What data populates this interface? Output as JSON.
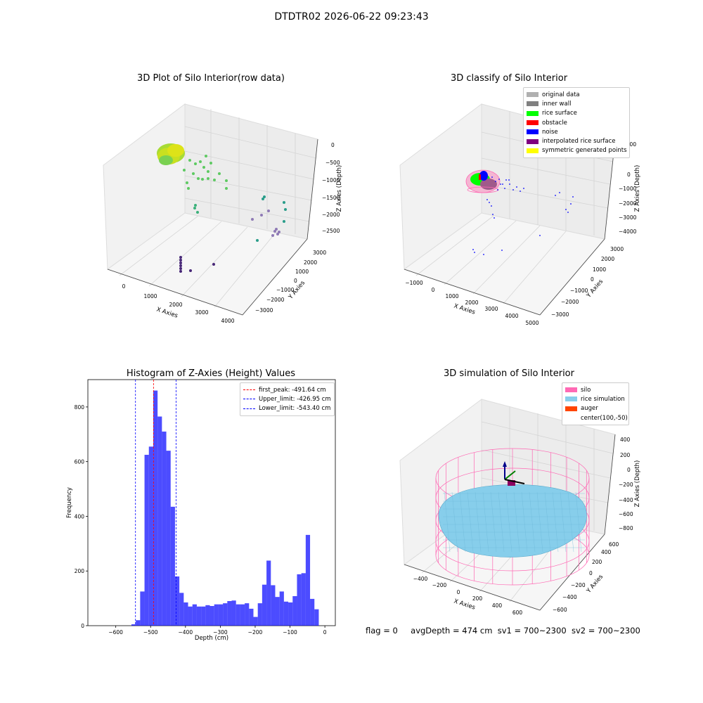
{
  "suptitle": "DTDTR02 2026-06-22 09:23:43",
  "footer": {
    "flag": "flag = 0",
    "avg_depth": "avgDepth = 474 cm",
    "sv1": "sv1 = 700~2300",
    "sv2": "sv2 = 700~2300"
  },
  "chart_data": [
    {
      "type": "scatter",
      "projection": "3d",
      "title": "3D Plot of Silo Interior(row data)",
      "xlabel": "X Axies",
      "ylabel": "Y Axies",
      "zlabel": "Z Axies (Depth)",
      "xticks": [
        "0",
        "1000",
        "2000",
        "3000",
        "4000"
      ],
      "yticks": [
        "−3000",
        "−2000",
        "−1000",
        "0",
        "1000",
        "2000",
        "3000"
      ],
      "zticks": [
        "−2500",
        "−2000",
        "−1500",
        "−1000",
        "−500",
        "0"
      ],
      "colormap": "viridis",
      "grid": true
    },
    {
      "type": "scatter",
      "projection": "3d",
      "title": "3D classify of Silo Interior",
      "xlabel": "X Axies",
      "ylabel": "Y Axies",
      "zlabel": "Z Axies (Depth)",
      "xticks": [
        "−1000",
        "0",
        "1000",
        "2000",
        "3000",
        "4000",
        "5000"
      ],
      "yticks": [
        "−3000",
        "−2000",
        "−1000",
        "0",
        "1000",
        "2000",
        "3000"
      ],
      "zticks": [
        "−4000",
        "−3000",
        "−2000",
        "−1000",
        "0",
        "1000"
      ],
      "legend_position": "top-right",
      "legend": [
        {
          "label": "original data",
          "color": "#b0b0b0"
        },
        {
          "label": "inner wall",
          "color": "#808080"
        },
        {
          "label": "rice surface",
          "color": "#00ff00"
        },
        {
          "label": "obstacle",
          "color": "#ff0000"
        },
        {
          "label": "noise",
          "color": "#0000ff"
        },
        {
          "label": "interpolated rice surface",
          "color": "#800080"
        },
        {
          "label": "symmetric generated points",
          "color": "#ffff00"
        }
      ],
      "grid": true
    },
    {
      "type": "bar",
      "subtype": "histogram",
      "title": "Histogram of Z-Axies (Height) Values",
      "xlabel": "Depth (cm)",
      "ylabel": "Frequency",
      "xlim": [
        -680,
        30
      ],
      "ylim": [
        0,
        900
      ],
      "xticks": [
        -600,
        -500,
        -400,
        -300,
        -200,
        -100,
        0
      ],
      "yticks": [
        0,
        200,
        400,
        600,
        800
      ],
      "bar_color": "#0000ff",
      "bin_start": -555,
      "bin_width": 12.5,
      "values": [
        5,
        20,
        125,
        625,
        655,
        860,
        765,
        710,
        640,
        435,
        180,
        120,
        85,
        70,
        78,
        70,
        70,
        75,
        72,
        78,
        78,
        82,
        90,
        92,
        78,
        78,
        82,
        62,
        32,
        82,
        150,
        238,
        148,
        105,
        125,
        88,
        85,
        108,
        188,
        192,
        332,
        98,
        60
      ],
      "reference_lines": [
        {
          "label": "first_peak: -491.64 cm",
          "x": -491.64,
          "color": "#ff0000"
        },
        {
          "label": "Upper_limit: -426.95 cm",
          "x": -426.95,
          "color": "#0000ff"
        },
        {
          "label": "Lower_limit: -543.40 cm",
          "x": -543.4,
          "color": "#0000ff"
        }
      ],
      "legend_position": "top-right",
      "grid": false
    },
    {
      "type": "surface",
      "projection": "3d",
      "title": "3D simulation of Silo Interior",
      "xlabel": "X Axies",
      "ylabel": "Y Axies",
      "zlabel": "Z Axies (Depth)",
      "xticks": [
        "−400",
        "−200",
        "0",
        "200",
        "400",
        "600"
      ],
      "yticks": [
        "−600",
        "−400",
        "−200",
        "0",
        "200",
        "400",
        "600"
      ],
      "zticks": [
        "−800",
        "−600",
        "−400",
        "−200",
        "0",
        "200",
        "400"
      ],
      "legend_position": "top-right",
      "legend": [
        {
          "label": "silo",
          "color": "#ff69b4"
        },
        {
          "label": "rice simulation",
          "color": "#87ceeb"
        },
        {
          "label": "auger",
          "color": "#ff4500"
        },
        {
          "label": "center(100,-50)",
          "color": ""
        }
      ],
      "grid": true
    }
  ]
}
